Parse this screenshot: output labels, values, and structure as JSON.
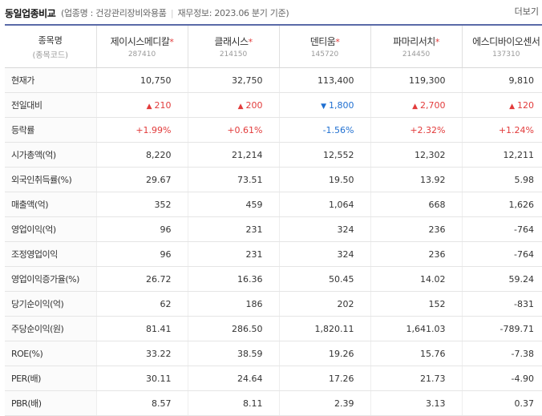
{
  "header": {
    "title": "동일업종비교",
    "industry": "(업종명 : 건강관리장비와용품",
    "finance": "재무정보: 2023.06 분기 기준)",
    "more_label": "더보기"
  },
  "table": {
    "header_label": "종목명",
    "header_sub": "(종목코드)",
    "companies": [
      {
        "name": "제이시스메디칼",
        "star": "*",
        "code": "287410"
      },
      {
        "name": "클래시스",
        "star": "*",
        "code": "214150"
      },
      {
        "name": "덴티움",
        "star": "*",
        "code": "145720"
      },
      {
        "name": "파마리서치",
        "star": "*",
        "code": "214450"
      },
      {
        "name": "에스디바이오센서",
        "star": "",
        "code": "137310"
      }
    ],
    "rows": [
      {
        "label": "현재가",
        "values": [
          "10,750",
          "32,750",
          "113,400",
          "119,300",
          "9,810"
        ]
      },
      {
        "label": "전일대비",
        "values": [
          "210",
          "200",
          "1,800",
          "2,700",
          "120"
        ],
        "dirs": [
          "up",
          "up",
          "down",
          "up",
          "up"
        ],
        "arrows": [
          "▲",
          "▲",
          "▼",
          "▲",
          "▲"
        ]
      },
      {
        "label": "등락률",
        "values": [
          "+1.99%",
          "+0.61%",
          "-1.56%",
          "+2.32%",
          "+1.24%"
        ],
        "dirs": [
          "up",
          "up",
          "down",
          "up",
          "up"
        ]
      },
      {
        "label": "시가총액(억)",
        "values": [
          "8,220",
          "21,214",
          "12,552",
          "12,302",
          "12,211"
        ]
      },
      {
        "label": "외국인취득률(%)",
        "values": [
          "29.67",
          "73.51",
          "19.50",
          "13.92",
          "5.98"
        ]
      },
      {
        "label": "매출액(억)",
        "values": [
          "352",
          "459",
          "1,064",
          "668",
          "1,626"
        ]
      },
      {
        "label": "영업이익(억)",
        "values": [
          "96",
          "231",
          "324",
          "236",
          "-764"
        ]
      },
      {
        "label": "조정영업이익",
        "values": [
          "96",
          "231",
          "324",
          "236",
          "-764"
        ]
      },
      {
        "label": "영업이익증가율(%)",
        "values": [
          "26.72",
          "16.36",
          "50.45",
          "14.02",
          "59.24"
        ]
      },
      {
        "label": "당기순이익(억)",
        "values": [
          "62",
          "186",
          "202",
          "152",
          "-831"
        ]
      },
      {
        "label": "주당순이익(원)",
        "values": [
          "81.41",
          "286.50",
          "1,820.11",
          "1,641.03",
          "-789.71"
        ]
      },
      {
        "label": "ROE(%)",
        "values": [
          "33.22",
          "38.59",
          "19.26",
          "15.76",
          "-7.38"
        ]
      },
      {
        "label": "PER(배)",
        "values": [
          "30.11",
          "24.64",
          "17.26",
          "21.73",
          "-4.90"
        ]
      },
      {
        "label": "PBR(배)",
        "values": [
          "8.57",
          "8.11",
          "2.39",
          "3.13",
          "0.37"
        ]
      }
    ]
  },
  "colors": {
    "up": "#e23b3b",
    "down": "#1f6fd1",
    "accent": "#5a6aa8"
  }
}
